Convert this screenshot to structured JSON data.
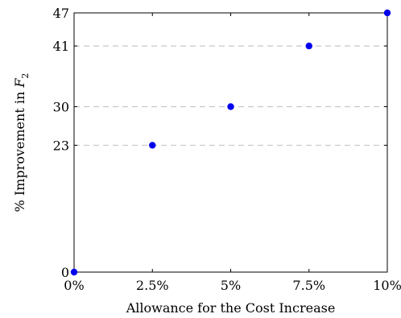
{
  "chart_data": {
    "type": "scatter",
    "xlabel": "Allowance for the Cost Increase",
    "ylabel_prefix": "% Improvement in ",
    "ylabel_var": "F",
    "ylabel_sub": "2",
    "x": [
      0,
      2.5,
      5,
      7.5,
      10
    ],
    "y": [
      0,
      23,
      30,
      41,
      47
    ],
    "x_ticks": [
      0,
      2.5,
      5,
      7.5,
      10
    ],
    "x_tick_labels": [
      "0%",
      "2.5%",
      "5%",
      "7.5%",
      "10%"
    ],
    "y_ticks": [
      0,
      23,
      30,
      41,
      47
    ],
    "y_tick_labels": [
      "0",
      "23",
      "30",
      "41",
      "47"
    ],
    "xlim": [
      0,
      10
    ],
    "ylim": [
      0,
      47
    ],
    "grid": "horizontal dashed at y ticks",
    "marker_color": "#0000ee",
    "grid_color": "#c8c8c8"
  }
}
